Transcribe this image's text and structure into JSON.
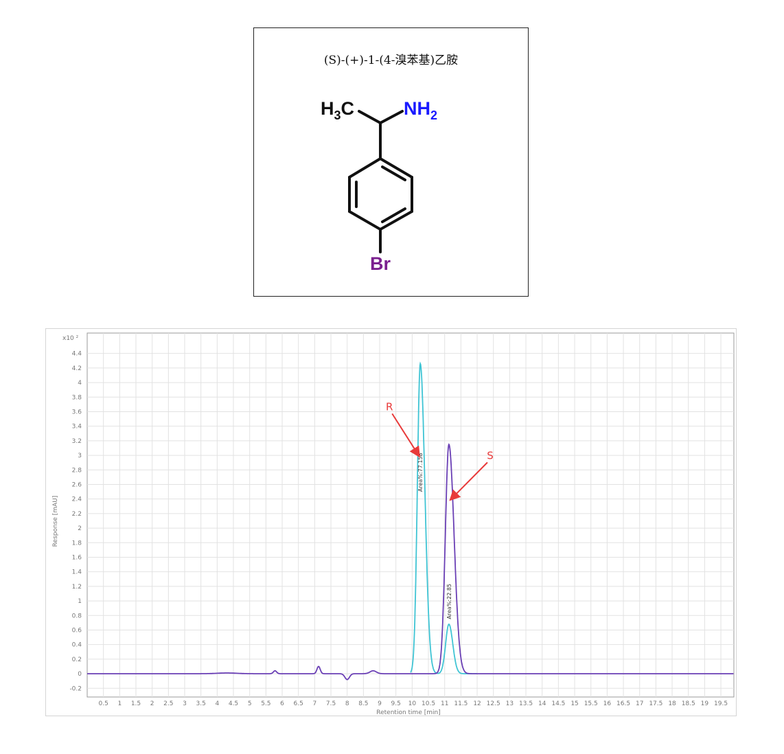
{
  "molecule": {
    "title": "(S)-(+)-1-(4-溴苯基)乙胺",
    "labels": {
      "methyl": "H",
      "methyl_sub": "3",
      "methyl_c": "C",
      "amine": "NH",
      "amine_sub": "2",
      "bromine": "Br"
    },
    "colors": {
      "bond": "#111111",
      "nitrogen": "#1a1aff",
      "bromine": "#7a1f8f"
    }
  },
  "chart_data": {
    "type": "line",
    "title": "",
    "xlabel": "Retention time [min]",
    "ylabel": "Response [mAU]",
    "y_multiplier": "x10 ²",
    "xlim": [
      0,
      19.9
    ],
    "ylim": [
      -0.32,
      4.68
    ],
    "grid": true,
    "x_ticks": [
      "0.5",
      "1",
      "1.5",
      "2",
      "2.5",
      "3",
      "3.5",
      "4",
      "4.5",
      "5",
      "5.5",
      "6",
      "6.5",
      "7",
      "7.5",
      "8",
      "8.5",
      "9",
      "9.5",
      "10",
      "10.5",
      "11",
      "11.5",
      "12",
      "12.5",
      "13",
      "13.5",
      "14",
      "14.5",
      "15",
      "15.5",
      "16",
      "16.5",
      "17",
      "17.5",
      "18",
      "18.5",
      "19",
      "19.5"
    ],
    "y_ticks": [
      "-0.2",
      "0",
      "0.2",
      "0.4",
      "0.6",
      "0.8",
      "1",
      "1.2",
      "1.4",
      "1.6",
      "1.8",
      "2",
      "2.2",
      "2.4",
      "2.6",
      "2.8",
      "3",
      "3.2",
      "3.4",
      "3.6",
      "3.8",
      "4",
      "4.2",
      "4.4"
    ],
    "series": [
      {
        "color": "#3fc4d4",
        "peaks": [
          {
            "rt": 10.25,
            "height": 4.26,
            "width": 0.09,
            "tail": 0.14
          },
          {
            "rt": 11.13,
            "height": 0.68,
            "width": 0.1,
            "tail": 0.12
          }
        ],
        "range": [
          9.95,
          12.0
        ]
      },
      {
        "color": "#6a3fb5",
        "peaks": [
          {
            "rt": 10.25,
            "height": 0.0,
            "width": 0.1,
            "tail": 0.1
          },
          {
            "rt": 11.13,
            "height": 3.15,
            "width": 0.11,
            "tail": 0.16
          },
          {
            "rt": 5.78,
            "height": 0.04,
            "width": 0.05,
            "tail": 0.05
          },
          {
            "rt": 7.12,
            "height": 0.1,
            "width": 0.05,
            "tail": 0.05
          },
          {
            "rt": 8.0,
            "height": -0.08,
            "width": 0.07,
            "tail": 0.07
          },
          {
            "rt": 8.8,
            "height": 0.04,
            "width": 0.1,
            "tail": 0.1
          },
          {
            "rt": 4.3,
            "height": 0.01,
            "width": 0.3,
            "tail": 0.3
          }
        ],
        "range": [
          0,
          19.9
        ]
      }
    ],
    "peak_labels": [
      {
        "text": "Area%:77.158",
        "rt": 10.25,
        "y": 2.5
      },
      {
        "text": "Area%:22.85",
        "rt": 11.13,
        "y": 0.75
      }
    ],
    "annotations": [
      {
        "text": "R",
        "color": "#e83a3a",
        "text_at": [
          9.3,
          3.62
        ],
        "arrow_to": [
          10.2,
          3.0
        ]
      },
      {
        "text": "S",
        "color": "#e83a3a",
        "text_at": [
          12.4,
          2.95
        ],
        "arrow_to": [
          11.2,
          2.4
        ]
      }
    ]
  }
}
